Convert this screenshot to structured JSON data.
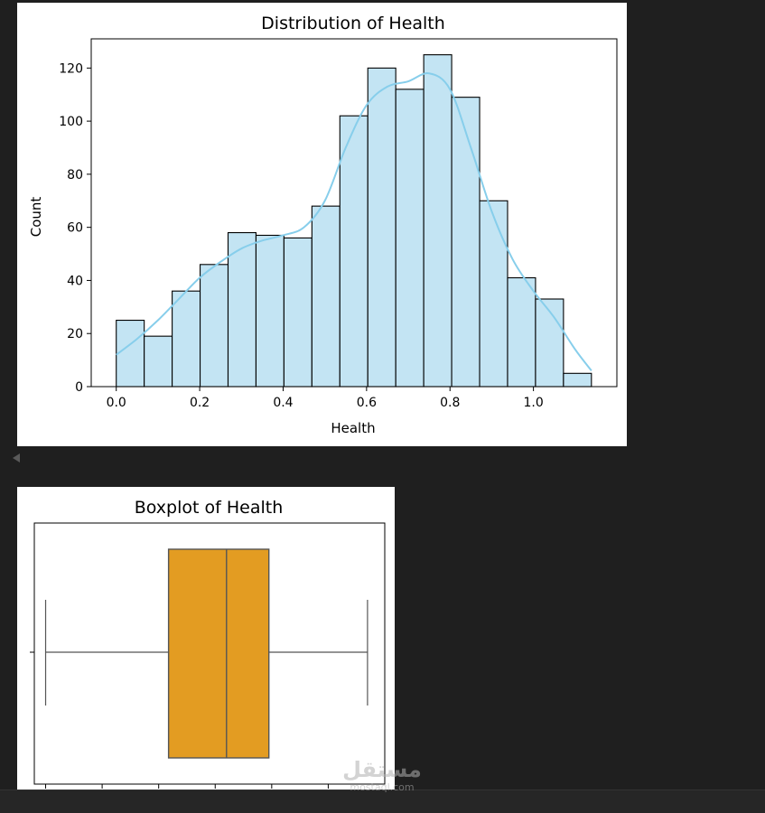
{
  "chart_data": [
    {
      "type": "bar",
      "title": "Distribution of Health",
      "xlabel": "Health",
      "ylabel": "Count",
      "xlim": [
        -0.06,
        1.2
      ],
      "ylim": [
        0,
        131
      ],
      "x_ticks": [
        0.0,
        0.2,
        0.4,
        0.6,
        0.8,
        1.0
      ],
      "x_tick_labels": [
        "0.0",
        "0.2",
        "0.4",
        "0.6",
        "0.8",
        "1.0"
      ],
      "y_ticks": [
        0,
        20,
        40,
        60,
        80,
        100,
        120
      ],
      "y_tick_labels": [
        "0",
        "20",
        "40",
        "60",
        "80",
        "100",
        "120"
      ],
      "bin_edges": [
        0.0,
        0.067,
        0.134,
        0.201,
        0.268,
        0.335,
        0.402,
        0.469,
        0.536,
        0.603,
        0.67,
        0.737,
        0.804,
        0.871,
        0.938,
        1.005,
        1.072,
        1.139
      ],
      "values": [
        25,
        19,
        36,
        46,
        58,
        57,
        56,
        68,
        102,
        120,
        112,
        125,
        109,
        70,
        41,
        33,
        5
      ],
      "kde": {
        "x": [
          0.0,
          0.05,
          0.1,
          0.15,
          0.2,
          0.25,
          0.3,
          0.35,
          0.4,
          0.45,
          0.5,
          0.55,
          0.6,
          0.65,
          0.7,
          0.75,
          0.8,
          0.85,
          0.9,
          0.95,
          1.0,
          1.05,
          1.1,
          1.139
        ],
        "y": [
          12,
          18,
          25,
          33,
          41,
          47,
          52,
          55,
          57,
          60,
          70,
          90,
          106,
          113,
          115,
          118,
          112,
          90,
          66,
          48,
          36,
          26,
          14,
          6
        ]
      },
      "colors": {
        "bar_fill": "#c3e4f3",
        "bar_edge": "#000000",
        "kde_line": "#87ceeb"
      },
      "grid": false
    },
    {
      "type": "boxplot",
      "title": "Boxplot of Health",
      "xlim": [
        -0.04,
        1.2
      ],
      "stats": {
        "whisker_low": 0.0,
        "q1": 0.435,
        "median": 0.64,
        "q3": 0.79,
        "whisker_high": 1.139
      },
      "x_ticks": [
        0.0,
        0.2,
        0.4,
        0.6,
        0.8,
        1.0
      ],
      "colors": {
        "box_fill": "#e39c22",
        "box_edge": "#555555"
      },
      "grid": false
    }
  ],
  "watermark": {
    "arabic": "مستقل",
    "latin": "mostaql.com"
  }
}
